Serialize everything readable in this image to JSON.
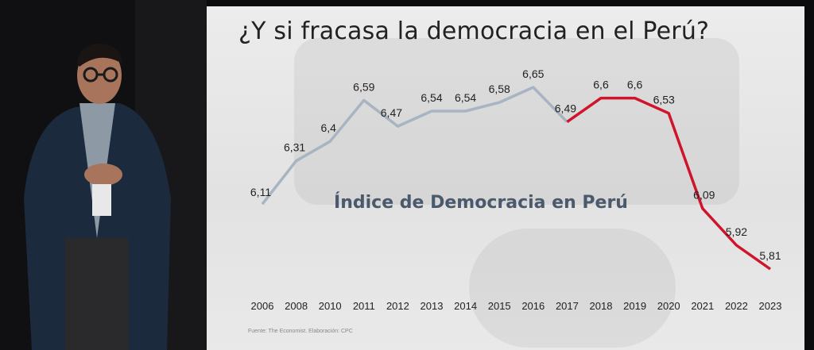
{
  "slide": {
    "title": "¿Y si fracasa la democracia en el Perú?",
    "source": "Fuente: The Economist. Elaboración: CPC"
  },
  "chart_data": {
    "type": "line",
    "title": "Índice de Democracia en Perú",
    "xlabel": "",
    "ylabel": "",
    "x": [
      "2006",
      "2008",
      "2010",
      "2011",
      "2012",
      "2013",
      "2014",
      "2015",
      "2016",
      "2017",
      "2018",
      "2019",
      "2020",
      "2021",
      "2022",
      "2023"
    ],
    "values": [
      6.11,
      6.31,
      6.4,
      6.59,
      6.47,
      6.54,
      6.54,
      6.58,
      6.65,
      6.49,
      6.6,
      6.6,
      6.53,
      6.09,
      5.92,
      5.81
    ],
    "data_labels": [
      "6,11",
      "6,31",
      "6,4",
      "6,59",
      "6,47",
      "6,54",
      "6,54",
      "6,58",
      "6,65",
      "6,49",
      "6,6",
      "6,6",
      "6,53",
      "6,09",
      "5,92",
      "5,81"
    ],
    "segments": [
      {
        "from": "2006",
        "to": "2017",
        "color": "#a8b4c2"
      },
      {
        "from": "2017",
        "to": "2023",
        "color": "#d0142c"
      }
    ],
    "grid": false,
    "legend": "none"
  }
}
